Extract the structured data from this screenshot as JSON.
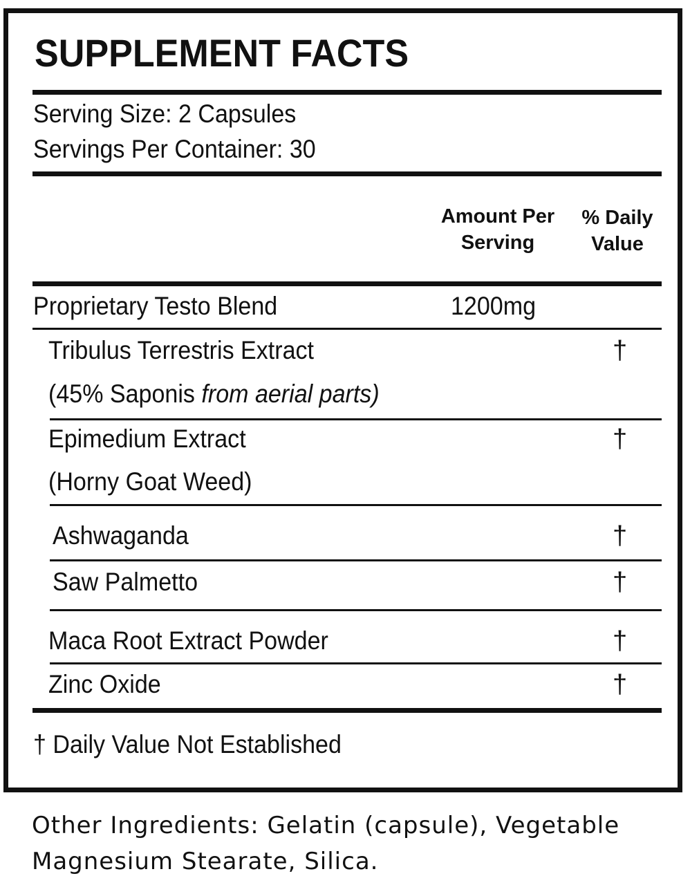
{
  "title": "SUPPLEMENT FACTS",
  "serving_size": "Serving Size: 2 Capsules",
  "servings_per_container": "Servings Per Container: 30",
  "columns": {
    "amount_line1": "Amount Per",
    "amount_line2": "Serving",
    "dv_line1": "% Daily",
    "dv_line2": "Value"
  },
  "blend": {
    "name": "Proprietary Testo Blend",
    "amount": "1200mg"
  },
  "ingredients": [
    {
      "name": "Tribulus Terrestris Extract",
      "detail_prefix": "(45% Saponis ",
      "detail_italic": "from aerial parts)",
      "dv": "†"
    },
    {
      "name": "Epimedium Extract",
      "detail": "(Horny Goat Weed)",
      "dv": "†"
    },
    {
      "name": "Ashwaganda",
      "dv": "†"
    },
    {
      "name": "Saw Palmetto",
      "dv": "†"
    },
    {
      "name": "Maca Root Extract Powder",
      "dv": "†"
    },
    {
      "name": "Zinc Oxide",
      "dv": "†"
    }
  ],
  "footnote": "† Daily Value Not Established",
  "other_ingredients": {
    "line1": "Other Ingredients: Gelatin (capsule), Vegetable",
    "line2": "Magnesium Stearate, Silica."
  }
}
